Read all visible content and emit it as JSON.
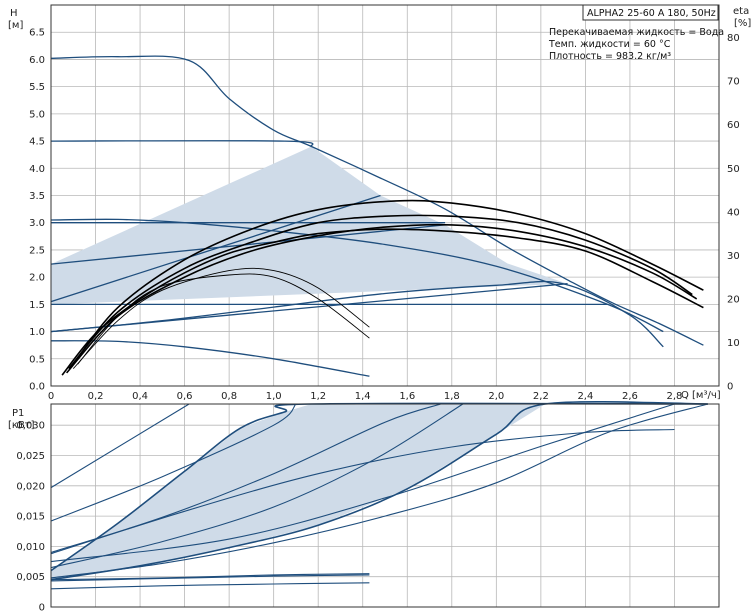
{
  "pump_label": "ALPHA2 25-60 A 180, 50Hz",
  "info_lines": [
    "Перекачиваемая жидкость = Вода",
    "Темп. жидкости = 60 °C",
    "Плотность = 983.2 кг/м³"
  ],
  "colors": {
    "curve": "#1f4e7d",
    "efficiency": "#000000",
    "fill": "#cfdbe8",
    "grid": "#b8b8b8",
    "frame": "#333333"
  },
  "chart_data": [
    {
      "type": "line",
      "name": "head_efficiency",
      "ylabel": "H",
      "yunit": "[м]",
      "y2label": "eta",
      "y2unit": "[%]",
      "xlabel": "Q",
      "xunit": "[м³/ч]",
      "xlim": [
        0,
        3.0
      ],
      "ylim": [
        0,
        7.0
      ],
      "y2lim": [
        0,
        87.5
      ],
      "xticks": [
        "0",
        "0,2",
        "0,4",
        "0,6",
        "0,8",
        "1,0",
        "1,2",
        "1,4",
        "1,6",
        "1,8",
        "2,0",
        "2,2",
        "2,4",
        "2,6",
        "2,8"
      ],
      "yticks": [
        "0.0",
        "0.5",
        "1.0",
        "1.5",
        "2.0",
        "2.5",
        "3.0",
        "3.5",
        "4.0",
        "4.5",
        "5.0",
        "5.5",
        "6.0",
        "6.5"
      ],
      "y2ticks": [
        "0",
        "10",
        "20",
        "30",
        "40",
        "50",
        "60",
        "70",
        "80"
      ],
      "shaded_region": [
        [
          0,
          2.24
        ],
        [
          1.17,
          4.4
        ],
        [
          1.48,
          3.5
        ],
        [
          1.77,
          2.96
        ],
        [
          2.05,
          2.25
        ],
        [
          2.32,
          1.88
        ],
        [
          0,
          1.5
        ]
      ],
      "series": [
        {
          "kind": "head",
          "x": [
            0,
            0.3,
            0.62,
            0.8,
            1.0,
            1.17,
            1.48,
            1.77,
            2.05,
            2.32,
            2.52,
            2.73,
            2.93
          ],
          "y": [
            6.02,
            6.05,
            5.98,
            5.28,
            4.7,
            4.4,
            3.82,
            3.25,
            2.55,
            1.95,
            1.53,
            1.15,
            0.75
          ]
        },
        {
          "kind": "head",
          "x": [
            0,
            1.05,
            1.17
          ],
          "y": [
            4.5,
            4.5,
            4.4
          ]
        },
        {
          "kind": "head",
          "x": [
            0,
            0.3,
            0.6,
            1.0,
            1.5,
            2.0,
            2.5,
            2.75
          ],
          "y": [
            3.05,
            3.06,
            3.0,
            2.85,
            2.6,
            2.2,
            1.5,
            1.0
          ]
        },
        {
          "kind": "head",
          "x": [
            0,
            1.77
          ],
          "y": [
            2.24,
            2.96
          ]
        },
        {
          "kind": "head",
          "x": [
            0,
            1.48
          ],
          "y": [
            1.55,
            3.5
          ]
        },
        {
          "kind": "head",
          "x": [
            0,
            1.77
          ],
          "y": [
            3.0,
            3.0
          ]
        },
        {
          "kind": "head",
          "x": [
            0,
            2.5
          ],
          "y": [
            1.5,
            1.5
          ]
        },
        {
          "kind": "head",
          "x": [
            0,
            2.32
          ],
          "y": [
            1.0,
            1.88
          ]
        },
        {
          "kind": "head",
          "x": [
            0,
            0.3,
            0.6,
            1.0,
            1.43
          ],
          "y": [
            0.83,
            0.82,
            0.72,
            0.5,
            0.18
          ]
        },
        {
          "kind": "head",
          "x": [
            0,
            0.5,
            1.0,
            1.5,
            2.0,
            2.3,
            2.6,
            2.75
          ],
          "y": [
            1.0,
            1.2,
            1.45,
            1.7,
            1.85,
            1.88,
            1.3,
            0.72
          ]
        },
        {
          "kind": "efficiency",
          "x": [
            0.05,
            0.2,
            0.4,
            0.6,
            0.8,
            1.0,
            1.2,
            1.5,
            1.8,
            2.1,
            2.4,
            2.7,
            2.93
          ],
          "y2": [
            2.5,
            12,
            20,
            26,
            30.5,
            33,
            35,
            36,
            35.5,
            34,
            31,
            24,
            18
          ]
        },
        {
          "kind": "efficiency",
          "x": [
            0.07,
            0.3,
            0.6,
            0.9,
            1.2,
            1.5,
            1.8,
            2.1,
            2.4,
            2.7,
            2.9
          ],
          "y2": [
            3,
            16,
            25,
            31,
            34.5,
            36.5,
            37,
            35.5,
            32,
            26,
            20
          ]
        },
        {
          "kind": "efficiency",
          "x": [
            0.08,
            0.3,
            0.6,
            0.9,
            1.2,
            1.5,
            1.8,
            2.1,
            2.4,
            2.7,
            2.88
          ],
          "y2": [
            4,
            17,
            27,
            33,
            37.5,
            39,
            39,
            37.5,
            33.5,
            27,
            21
          ]
        },
        {
          "kind": "efficiency",
          "x": [
            0.1,
            0.3,
            0.6,
            0.9,
            1.2,
            1.55,
            1.8,
            2.1,
            2.4,
            2.7,
            2.93
          ],
          "y2": [
            5,
            18,
            29,
            36,
            40.5,
            42.5,
            42,
            39.5,
            35,
            28,
            22
          ]
        },
        {
          "kind": "efficiency",
          "x": [
            0.1,
            0.3,
            0.5,
            0.8,
            1.0,
            1.2,
            1.43
          ],
          "y2": [
            4,
            15,
            22,
            26.5,
            26.5,
            22.5,
            13.5
          ]
        },
        {
          "kind": "efficiency",
          "x": [
            0.12,
            0.3,
            0.5,
            0.8,
            1.0,
            1.2,
            1.43
          ],
          "y2": [
            5,
            16,
            23,
            25.5,
            25,
            20,
            11
          ]
        }
      ]
    },
    {
      "type": "line",
      "name": "power",
      "ylabel": "P1",
      "yunit": "[кВт]",
      "xlim": [
        0,
        3.0
      ],
      "ylim": [
        0,
        0.0335
      ],
      "yticks": [
        "0",
        "0,005",
        "0,010",
        "0,015",
        "0,020",
        "0,025",
        "0,030"
      ],
      "shaded_region": [
        [
          0,
          0.006
        ],
        [
          0.3,
          0.0138
        ],
        [
          0.6,
          0.0224
        ],
        [
          0.85,
          0.0295
        ],
        [
          1.05,
          0.0322
        ],
        [
          1.17,
          0.0335
        ],
        [
          2.22,
          0.0335
        ],
        [
          2.0,
          0.0285
        ],
        [
          1.6,
          0.0195
        ],
        [
          1.2,
          0.0135
        ],
        [
          0.8,
          0.0098
        ],
        [
          0.4,
          0.0068
        ],
        [
          0,
          0.0045
        ]
      ],
      "series": [
        {
          "kind": "power",
          "x": [
            0,
            0.3,
            0.6,
            0.85,
            1.05,
            1.17,
            2.95
          ],
          "y": [
            0.006,
            0.0138,
            0.0224,
            0.0295,
            0.0322,
            0.0335,
            0.0335
          ]
        },
        {
          "kind": "power",
          "x": [
            0,
            0.4,
            0.8,
            1.2,
            1.6,
            2.0,
            2.22,
            2.95
          ],
          "y": [
            0.0045,
            0.0068,
            0.0098,
            0.0135,
            0.0195,
            0.0285,
            0.0335,
            0.0335
          ]
        },
        {
          "kind": "power",
          "x": [
            0,
            0.62
          ],
          "y": [
            0.0197,
            0.0335
          ]
        },
        {
          "kind": "power",
          "x": [
            0,
            0.5,
            1.0,
            1.1
          ],
          "y": [
            0.0142,
            0.0215,
            0.03,
            0.0335
          ]
        },
        {
          "kind": "power",
          "x": [
            0,
            0.5,
            1.0,
            1.5,
            1.75
          ],
          "y": [
            0.009,
            0.0148,
            0.022,
            0.0305,
            0.0335
          ]
        },
        {
          "kind": "power",
          "x": [
            0,
            0.5,
            1.0,
            1.45,
            1.85
          ],
          "y": [
            0.0065,
            0.0108,
            0.0165,
            0.0243,
            0.0335
          ]
        },
        {
          "kind": "power",
          "x": [
            0,
            0.8,
            1.5,
            2.2,
            2.8
          ],
          "y": [
            0.0075,
            0.0112,
            0.018,
            0.0265,
            0.0335
          ]
        },
        {
          "kind": "power",
          "x": [
            0,
            0.6,
            1.2,
            1.8,
            2.4,
            2.8
          ],
          "y": [
            0.0088,
            0.0158,
            0.022,
            0.0264,
            0.0288,
            0.0293
          ]
        },
        {
          "kind": "power",
          "x": [
            0,
            0.5,
            1.0,
            1.5,
            2.0,
            2.5,
            2.95
          ],
          "y": [
            0.0048,
            0.0072,
            0.0106,
            0.015,
            0.0205,
            0.0288,
            0.0335
          ]
        },
        {
          "kind": "power",
          "x": [
            0,
            0.5,
            1.0,
            1.43
          ],
          "y": [
            0.0045,
            0.0048,
            0.0053,
            0.0055
          ]
        },
        {
          "kind": "power",
          "x": [
            0,
            0.5,
            1.0,
            1.43
          ],
          "y": [
            0.0043,
            0.0047,
            0.0051,
            0.0053
          ]
        },
        {
          "kind": "power",
          "x": [
            0,
            0.5,
            1.0,
            1.43
          ],
          "y": [
            0.003,
            0.0035,
            0.0038,
            0.004
          ]
        }
      ]
    }
  ]
}
